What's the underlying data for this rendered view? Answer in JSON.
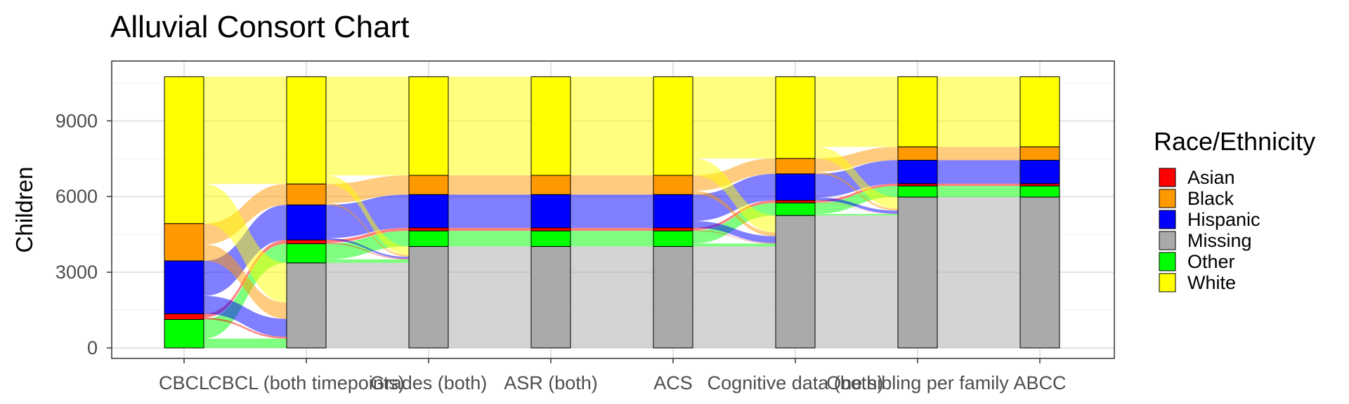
{
  "title": "Alluvial Consort Chart",
  "chart_data": {
    "type": "alluvial",
    "title": "Alluvial Consort Chart",
    "xlabel": "",
    "ylabel": "Children",
    "ylim": [
      0,
      10900
    ],
    "yticks": [
      0,
      3000,
      6000,
      9000
    ],
    "grid": true,
    "legend_position": "right",
    "legend_title": "Race/Ethnicity",
    "groups": [
      {
        "name": "Asian",
        "color": "#FF0000"
      },
      {
        "name": "Black",
        "color": "#FF9900"
      },
      {
        "name": "Hispanic",
        "color": "#0000FF"
      },
      {
        "name": "Missing",
        "color": "#AAAAAA"
      },
      {
        "name": "Other",
        "color": "#00FF00"
      },
      {
        "name": "White",
        "color": "#FFFF00"
      }
    ],
    "stages": [
      "CBCL",
      "CBCL (both timepoints)",
      "Grades (both)",
      "ASR (both)",
      "ACS",
      "Cognitive data (both)",
      "One sibling per family",
      "ABCC"
    ],
    "stage_counts": [
      {
        "Missing": 0,
        "Other": 1130,
        "Asian": 220,
        "Hispanic": 2100,
        "Black": 1480,
        "White": 5820
      },
      {
        "Missing": 3370,
        "Other": 760,
        "Asian": 150,
        "Hispanic": 1390,
        "Black": 830,
        "White": 4250
      },
      {
        "Missing": 4020,
        "Other": 620,
        "Asian": 120,
        "Hispanic": 1320,
        "Black": 760,
        "White": 3910
      },
      {
        "Missing": 4020,
        "Other": 620,
        "Asian": 120,
        "Hispanic": 1320,
        "Black": 760,
        "White": 3910
      },
      {
        "Missing": 4020,
        "Other": 620,
        "Asian": 120,
        "Hispanic": 1320,
        "Black": 760,
        "White": 3910
      },
      {
        "Missing": 5250,
        "Other": 500,
        "Asian": 100,
        "Hispanic": 1050,
        "Black": 610,
        "White": 3240
      },
      {
        "Missing": 5980,
        "Other": 440,
        "Asian": 90,
        "Hispanic": 930,
        "Black": 530,
        "White": 2780
      },
      {
        "Missing": 5980,
        "Other": 440,
        "Asian": 90,
        "Hispanic": 930,
        "Black": 530,
        "White": 2780
      }
    ]
  }
}
